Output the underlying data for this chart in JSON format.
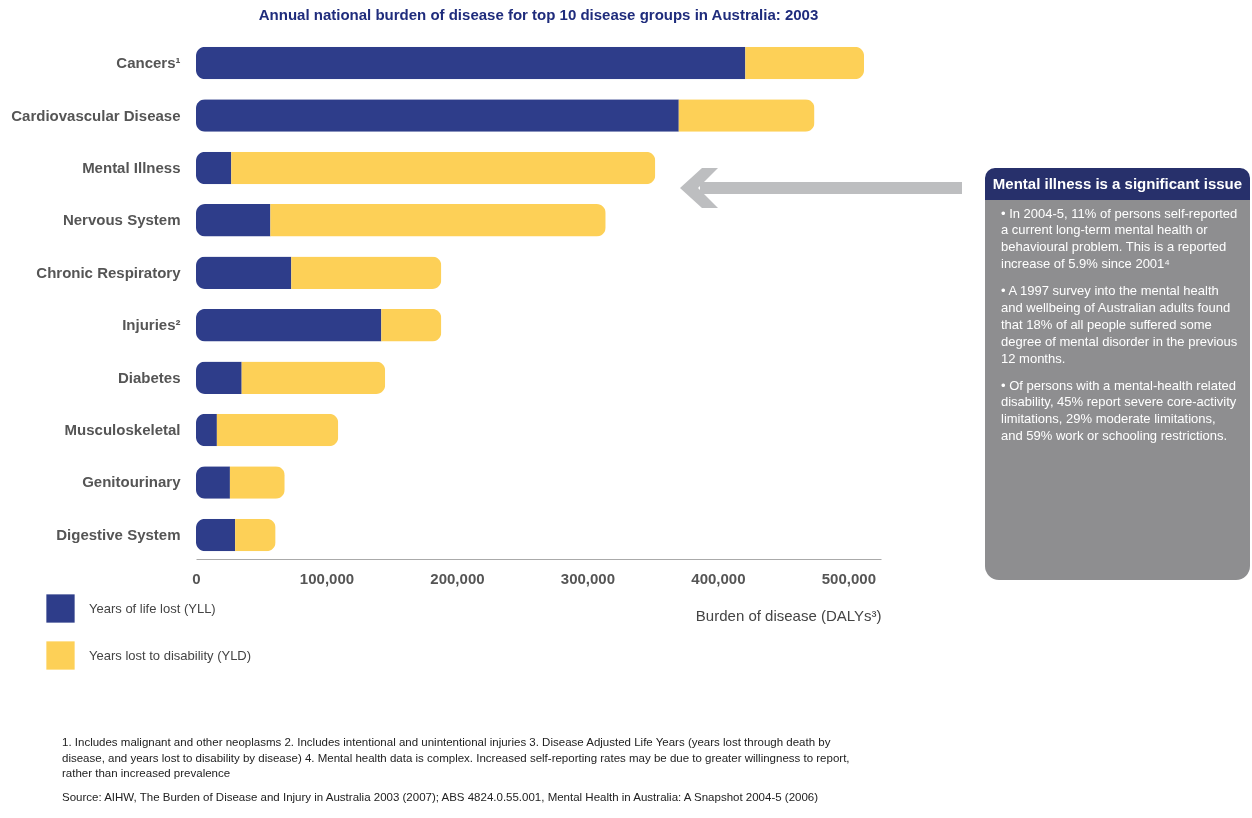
{
  "chart_data": {
    "type": "bar",
    "orientation": "horizontal",
    "stacked": true,
    "title": "Annual national burden of disease for top 10 disease groups in Australia: 2003",
    "xlabel": "Burden of disease (DALYs³)",
    "categories": [
      "Cancers¹",
      "Cardiovascular Disease",
      "Mental Illness",
      "Nervous System",
      "Chronic Respiratory",
      "Injuries²",
      "Diabetes",
      "Musculoskeletal",
      "Genitourinary",
      "Digestive System"
    ],
    "series": [
      {
        "name": "Years of life lost (YLL)",
        "color": "#2e3d8a",
        "values": [
          421000,
          370000,
          27000,
          57000,
          73000,
          142000,
          35000,
          16000,
          26000,
          30000
        ]
      },
      {
        "name": "Years lost to disability (YLD)",
        "color": "#fdd057",
        "values": [
          91000,
          104000,
          325000,
          257000,
          115000,
          46000,
          110000,
          93000,
          42000,
          31000
        ]
      }
    ],
    "xlim": [
      0,
      525000
    ],
    "xticks": [
      0,
      {
        "value": 100000,
        "label": "100,000"
      },
      {
        "value": 200000,
        "label": "200,000"
      },
      {
        "value": 300000,
        "label": "300,000"
      },
      {
        "value": 400000,
        "label": "400,000"
      },
      {
        "value": 500000,
        "label": "500,000"
      }
    ],
    "grid": false,
    "legend": "bottom left",
    "annotations": [
      "Mental illness is a significant issue",
      "• In 2004-5, 11% of persons self-reported a current long-term mental health or behavioural problem. This is a reported increase of 5.9% since 2001⁴",
      "• A 1997 survey into the mental health and wellbeing of Australian adults found that 18% of all people suffered some degree of mental disorder in the previous 12 months.",
      "• Of persons with a mental-health related disability, 45% report severe core-activity limitations, 29% moderate limitations, and 59% work or schooling restrictions.",
      "1. Includes malignant and other neoplasms   2. Includes intentional and unintentional injuries 3. Disease Adjusted Life Years (years lost through death by disease, and years lost to disability by disease)  4. Mental health data is complex. Increased self-reporting rates may be due to greater willingness to report, rather than increased prevalence",
      "Source: AIHW, The Burden of Disease and Injury in Australia 2003 (2007); ABS 4824.0.55.001, Mental Health in Australia: A Snapshot 2004-5 (2006)"
    ]
  }
}
